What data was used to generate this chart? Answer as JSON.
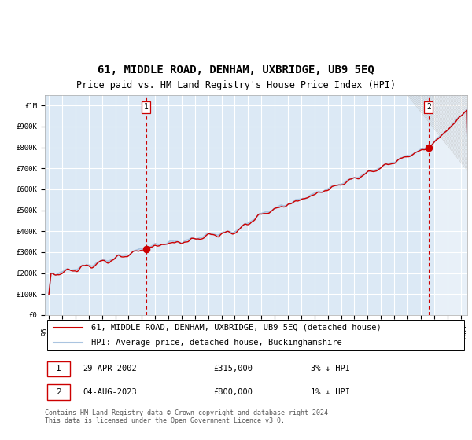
{
  "title": "61, MIDDLE ROAD, DENHAM, UXBRIDGE, UB9 5EQ",
  "subtitle": "Price paid vs. HM Land Registry's House Price Index (HPI)",
  "hpi_label": "HPI: Average price, detached house, Buckinghamshire",
  "property_label": "61, MIDDLE ROAD, DENHAM, UXBRIDGE, UB9 5EQ (detached house)",
  "sale1_date_label": "29-APR-2002",
  "sale1_price": 315000,
  "sale1_price_label": "£315,000",
  "sale1_note": "3% ↓ HPI",
  "sale1_x": 2002.33,
  "sale2_date_label": "04-AUG-2023",
  "sale2_price": 800000,
  "sale2_price_label": "£800,000",
  "sale2_note": "1% ↓ HPI",
  "sale2_x": 2023.59,
  "ylim": [
    0,
    1050000
  ],
  "xlim_left": 1994.7,
  "xlim_right": 2026.5,
  "background_color": "#dce9f5",
  "outer_background": "#ffffff",
  "hpi_color": "#aac4e0",
  "property_color": "#cc0000",
  "grid_color": "#ffffff",
  "vline_color": "#cc0000",
  "hatch_color": "#bbbbbb",
  "future_start": 2024.0,
  "footnote": "Contains HM Land Registry data © Crown copyright and database right 2024.\nThis data is licensed under the Open Government Licence v3.0.",
  "title_fontsize": 10,
  "subtitle_fontsize": 8.5,
  "tick_fontsize": 6.5,
  "legend_fontsize": 7.5,
  "table_fontsize": 8,
  "footnote_fontsize": 6
}
